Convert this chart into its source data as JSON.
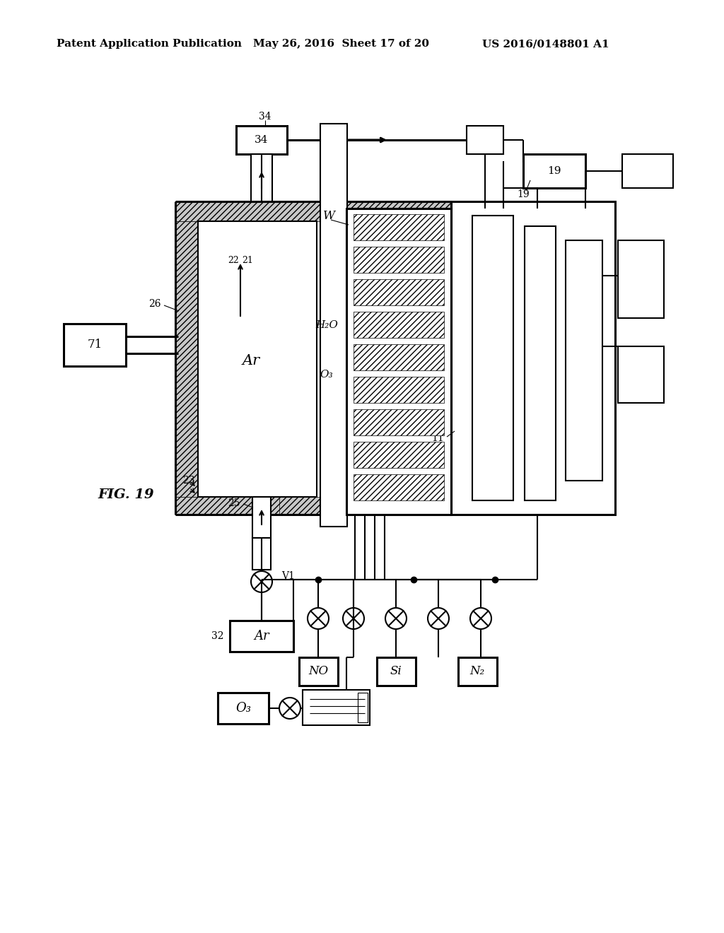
{
  "bg": "#ffffff",
  "header_left": "Patent Application Publication",
  "header_mid": "May 26, 2016  Sheet 17 of 20",
  "header_right": "US 2016/0148801 A1",
  "fig_label": "FIG. 19",
  "lw": 1.5,
  "lw2": 2.2
}
